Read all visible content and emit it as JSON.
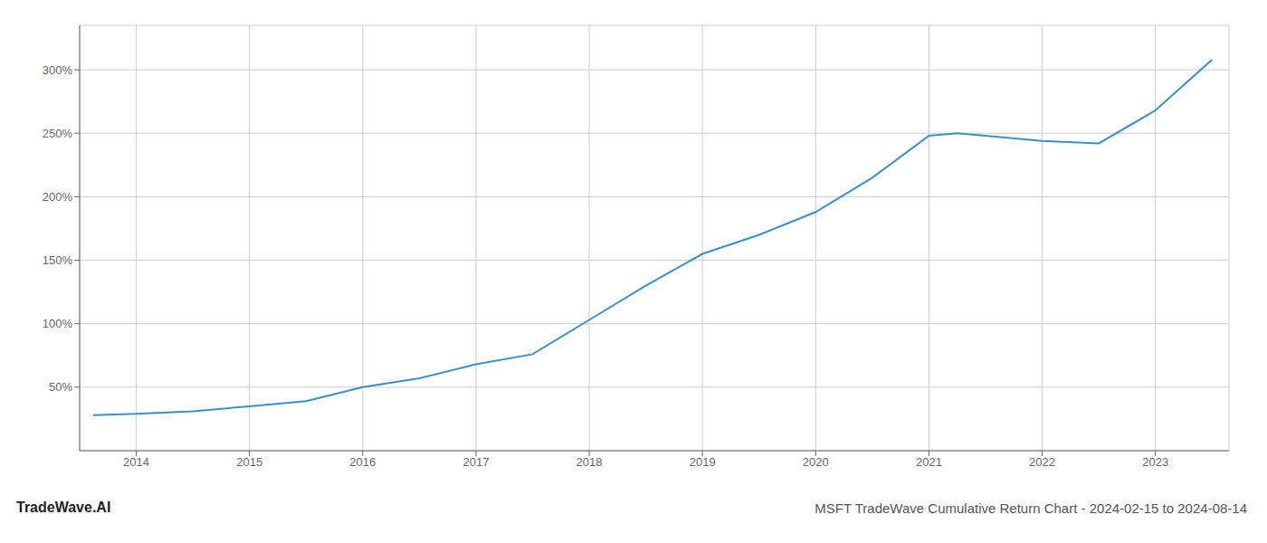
{
  "chart_data": {
    "type": "line",
    "title": "MSFT TradeWave Cumulative Return Chart - 2024-02-15 to 2024-08-14",
    "annotations": [
      "TradeWave.AI"
    ],
    "x": [
      2013.62,
      2014.0,
      2014.5,
      2015.0,
      2015.5,
      2016.0,
      2016.5,
      2017.0,
      2017.5,
      2018.0,
      2018.5,
      2019.0,
      2019.5,
      2020.0,
      2020.5,
      2021.0,
      2021.25,
      2021.5,
      2022.0,
      2022.5,
      2023.0,
      2023.5
    ],
    "values": [
      28,
      29,
      31,
      35,
      39,
      50,
      57,
      68,
      76,
      103,
      130,
      155,
      170,
      188,
      215,
      248,
      250,
      248,
      244,
      242,
      268,
      308
    ],
    "color": "#3a8fc7",
    "xlim": [
      2013.5,
      2023.65
    ],
    "ylim": [
      0,
      335
    ],
    "xticks": [
      2014,
      2015,
      2016,
      2017,
      2018,
      2019,
      2020,
      2021,
      2022,
      2023
    ],
    "yticks": [
      {
        "value": 50,
        "label": "50%"
      },
      {
        "value": 100,
        "label": "100%"
      },
      {
        "value": 150,
        "label": "150%"
      },
      {
        "value": 200,
        "label": "200%"
      },
      {
        "value": 250,
        "label": "250%"
      },
      {
        "value": 300,
        "label": "300%"
      }
    ],
    "grid": true
  }
}
